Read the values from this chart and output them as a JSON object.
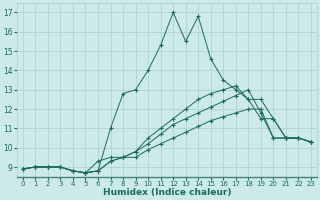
{
  "xlabel": "Humidex (Indice chaleur)",
  "bg_color": "#cceaea",
  "grid_color": "#aacece",
  "line_color": "#1a6b5a",
  "xlim": [
    -0.5,
    23.5
  ],
  "ylim": [
    8.5,
    17.5
  ],
  "xticks": [
    0,
    1,
    2,
    3,
    4,
    5,
    6,
    7,
    8,
    9,
    10,
    11,
    12,
    13,
    14,
    15,
    16,
    17,
    18,
    19,
    20,
    21,
    22,
    23
  ],
  "yticks": [
    9,
    10,
    11,
    12,
    13,
    14,
    15,
    16,
    17
  ],
  "lines": [
    {
      "x": [
        0,
        1,
        2,
        3,
        4,
        5,
        6,
        7,
        8,
        9,
        10,
        11,
        12,
        13,
        14,
        15,
        16,
        17,
        18,
        19,
        20,
        21,
        22,
        23
      ],
      "y": [
        8.9,
        9.0,
        9.0,
        9.0,
        8.8,
        8.7,
        8.8,
        11.0,
        12.8,
        13.0,
        14.0,
        15.3,
        17.0,
        15.5,
        16.8,
        14.6,
        13.5,
        13.0,
        12.5,
        12.5,
        11.5,
        10.5,
        10.5,
        10.3
      ]
    },
    {
      "x": [
        0,
        1,
        2,
        3,
        4,
        5,
        6,
        7,
        8,
        9,
        10,
        11,
        12,
        13,
        14,
        15,
        16,
        17,
        18,
        19,
        20,
        21,
        22,
        23
      ],
      "y": [
        8.9,
        9.0,
        9.0,
        9.0,
        8.8,
        8.7,
        9.3,
        9.5,
        9.5,
        9.8,
        10.5,
        11.0,
        11.5,
        12.0,
        12.5,
        12.8,
        13.0,
        13.2,
        12.5,
        11.5,
        11.5,
        10.5,
        10.5,
        10.3
      ]
    },
    {
      "x": [
        0,
        1,
        2,
        3,
        4,
        5,
        6,
        7,
        8,
        9,
        10,
        11,
        12,
        13,
        14,
        15,
        16,
        17,
        18,
        19,
        20,
        21,
        22,
        23
      ],
      "y": [
        8.9,
        9.0,
        9.0,
        9.0,
        8.8,
        8.7,
        8.8,
        9.3,
        9.5,
        9.8,
        10.2,
        10.7,
        11.2,
        11.5,
        11.8,
        12.1,
        12.4,
        12.7,
        13.0,
        11.8,
        10.5,
        10.5,
        10.5,
        10.3
      ]
    },
    {
      "x": [
        0,
        1,
        2,
        3,
        4,
        5,
        6,
        7,
        8,
        9,
        10,
        11,
        12,
        13,
        14,
        15,
        16,
        17,
        18,
        19,
        20,
        21,
        22,
        23
      ],
      "y": [
        8.9,
        9.0,
        9.0,
        9.0,
        8.8,
        8.7,
        8.8,
        9.3,
        9.5,
        9.5,
        9.9,
        10.2,
        10.5,
        10.8,
        11.1,
        11.4,
        11.6,
        11.8,
        12.0,
        12.0,
        10.5,
        10.5,
        10.5,
        10.3
      ]
    }
  ]
}
